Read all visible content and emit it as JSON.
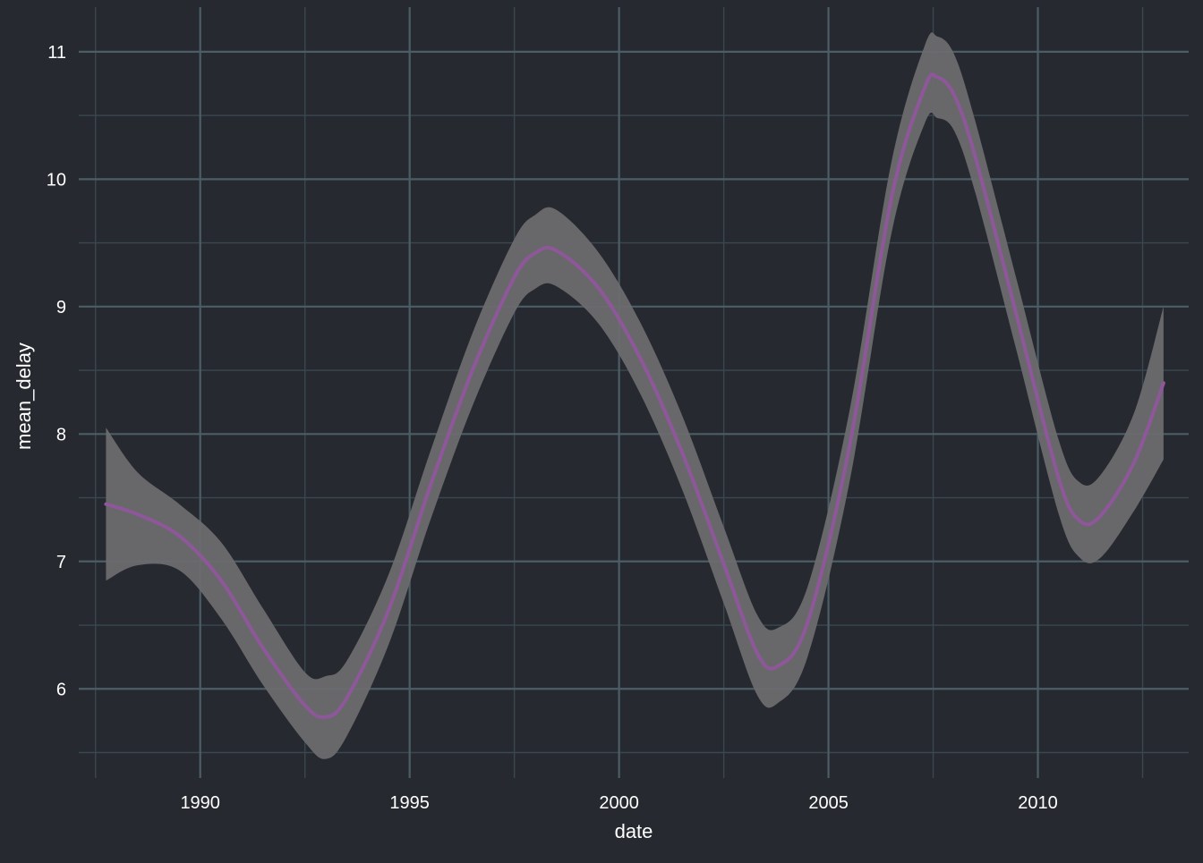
{
  "colors": {
    "background": "#262a30",
    "grid_major": "#4c5d66",
    "grid_minor": "#3a474f",
    "band": "#6b6c6f",
    "line": "#8e579a",
    "text": "#ffffff"
  },
  "chart_data": {
    "type": "line",
    "title": "",
    "xlabel": "date",
    "ylabel": "mean_delay",
    "grid": true,
    "legend": "none",
    "xlim": [
      1987.1,
      2013.6
    ],
    "ylim": [
      5.3,
      11.35
    ],
    "x_ticks": [
      1990,
      1995,
      2000,
      2005,
      2010
    ],
    "x_tick_labels": [
      "1990",
      "1995",
      "2000",
      "2005",
      "2010"
    ],
    "x_minor": [
      1987.5,
      1992.5,
      1997.5,
      2002.5,
      2007.5,
      2012.5
    ],
    "y_ticks": [
      6,
      7,
      8,
      9,
      10,
      11
    ],
    "y_tick_labels": [
      "6",
      "7",
      "8",
      "9",
      "10",
      "11"
    ],
    "y_minor": [
      5.5,
      6.5,
      7.5,
      8.5,
      9.5,
      10.5
    ],
    "series": [
      {
        "x": [
          1987.75,
          1988.5,
          1989.5,
          1990.5,
          1991.5,
          1992.5,
          1993.0,
          1993.5,
          1994.5,
          1995.5,
          1996.5,
          1997.5,
          1998.0,
          1998.5,
          1999.5,
          2000.5,
          2001.5,
          2002.5,
          2003.3,
          2003.8,
          2004.5,
          2005.5,
          2006.5,
          2007.3,
          2007.6,
          2008.0,
          2008.5,
          2009.5,
          2010.5,
          2011.0,
          2011.5,
          2012.3,
          2013.0
        ],
        "y": [
          7.45,
          7.37,
          7.2,
          6.85,
          6.32,
          5.87,
          5.78,
          5.93,
          6.62,
          7.6,
          8.5,
          9.23,
          9.42,
          9.44,
          9.15,
          8.6,
          7.86,
          6.98,
          6.28,
          6.18,
          6.52,
          7.9,
          9.85,
          10.72,
          10.8,
          10.66,
          10.18,
          8.92,
          7.65,
          7.32,
          7.36,
          7.78,
          8.4
        ],
        "lower": [
          6.85,
          6.97,
          6.93,
          6.55,
          6.03,
          5.58,
          5.45,
          5.63,
          6.35,
          7.33,
          8.22,
          8.95,
          9.14,
          9.16,
          8.87,
          8.32,
          7.57,
          6.67,
          5.95,
          5.89,
          6.25,
          7.62,
          9.57,
          10.44,
          10.48,
          10.38,
          9.9,
          8.64,
          7.37,
          7.03,
          7.03,
          7.4,
          7.8
        ],
        "upper": [
          8.05,
          7.7,
          7.45,
          7.15,
          6.63,
          6.13,
          6.1,
          6.22,
          6.9,
          7.87,
          8.79,
          9.53,
          9.72,
          9.76,
          9.43,
          8.88,
          8.15,
          7.27,
          6.58,
          6.48,
          6.8,
          8.18,
          10.13,
          11.05,
          11.12,
          10.98,
          10.46,
          9.2,
          7.95,
          7.62,
          7.68,
          8.17,
          9.0
        ]
      }
    ]
  }
}
